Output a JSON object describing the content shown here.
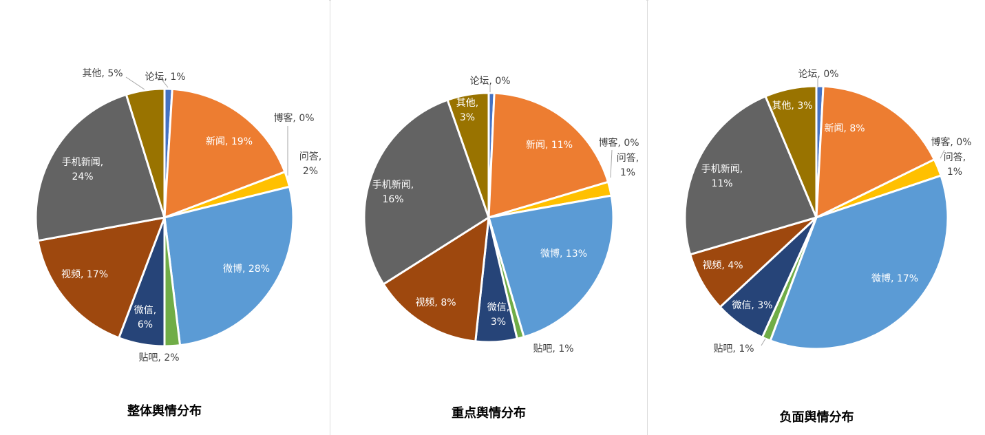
{
  "colors": {
    "论坛": "#4472C4",
    "新闻": "#ED7D31",
    "博客": "#A5A5A5",
    "问答": "#FFC000",
    "微博": "#5B9BD5",
    "贴吧": "#70AD47",
    "微信": "#264478",
    "视频": "#9E480E",
    "手机新闻": "#636363",
    "其他": "#997300"
  },
  "chart_data": [
    {
      "type": "pie",
      "title": "整体舆情分布",
      "slices": [
        {
          "name": "论坛",
          "value": 1,
          "label": "论坛, 1%"
        },
        {
          "name": "新闻",
          "value": 19,
          "label": "新闻, 19%"
        },
        {
          "name": "博客",
          "value": 0,
          "label": "博客, 0%"
        },
        {
          "name": "问答",
          "value": 2,
          "label": "问答,\n2%"
        },
        {
          "name": "微博",
          "value": 28,
          "label": "微博, 28%"
        },
        {
          "name": "贴吧",
          "value": 2,
          "label": "贴吧, 2%"
        },
        {
          "name": "微信",
          "value": 6,
          "label": "微信,\n6%"
        },
        {
          "name": "视频",
          "value": 17,
          "label": "视频, 17%"
        },
        {
          "name": "手机新闻",
          "value": 24,
          "label": "手机新闻,\n24%"
        },
        {
          "name": "其他",
          "value": 5,
          "label": "其他, 5%"
        }
      ]
    },
    {
      "type": "pie",
      "title": "重点舆情分布",
      "slices": [
        {
          "name": "论坛",
          "value": 0.4,
          "label": "论坛, 0%"
        },
        {
          "name": "新闻",
          "value": 11,
          "label": "新闻, 11%"
        },
        {
          "name": "博客",
          "value": 0,
          "label": "博客, 0%"
        },
        {
          "name": "问答",
          "value": 1,
          "label": "问答,\n1%"
        },
        {
          "name": "微博",
          "value": 13,
          "label": "微博, 13%"
        },
        {
          "name": "贴吧",
          "value": 0.5,
          "label": "贴吧, 1%"
        },
        {
          "name": "微信",
          "value": 3,
          "label": "微信,\n3%"
        },
        {
          "name": "视频",
          "value": 8,
          "label": "视频, 8%"
        },
        {
          "name": "手机新闻",
          "value": 16,
          "label": "手机新闻,\n16%"
        },
        {
          "name": "其他",
          "value": 3,
          "label": "其他,\n3%"
        }
      ]
    },
    {
      "type": "pie",
      "title": "负面舆情分布",
      "slices": [
        {
          "name": "论坛",
          "value": 0.4,
          "label": "论坛, 0%"
        },
        {
          "name": "新闻",
          "value": 8,
          "label": "新闻, 8%"
        },
        {
          "name": "博客",
          "value": 0,
          "label": "博客, 0%"
        },
        {
          "name": "问答",
          "value": 1,
          "label": "问答,\n1%"
        },
        {
          "name": "微博",
          "value": 17,
          "label": "微博, 17%"
        },
        {
          "name": "贴吧",
          "value": 0.5,
          "label": "贴吧, 1%"
        },
        {
          "name": "微信",
          "value": 3,
          "label": "微信, 3%"
        },
        {
          "name": "视频",
          "value": 3.5,
          "label": "视频, 4%"
        },
        {
          "name": "手机新闻",
          "value": 11,
          "label": "手机新闻,\n11%"
        },
        {
          "name": "其他",
          "value": 3,
          "label": "其他, 3%"
        }
      ]
    }
  ]
}
